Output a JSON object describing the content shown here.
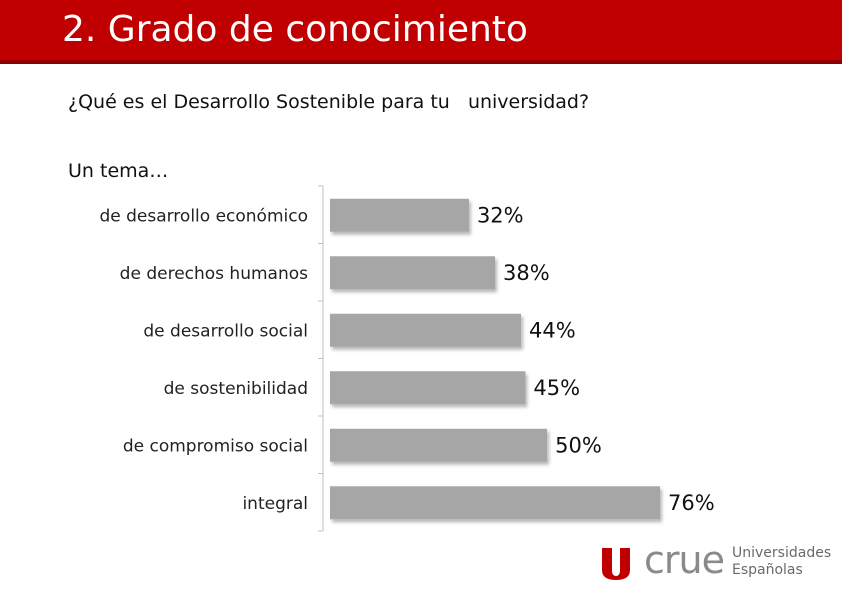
{
  "header": {
    "title": "2. Grado de conocimiento"
  },
  "question": "¿Qué es el Desarrollo Sostenible para tu   universidad?",
  "subtitle": "Un tema…",
  "colors": {
    "title_bg": "#c00000",
    "bar": "#a6a6a6",
    "logo_red": "#c00000"
  },
  "chart_data": {
    "type": "bar",
    "orientation": "horizontal",
    "categories": [
      "de desarrollo económico",
      "de derechos humanos",
      "de desarrollo social",
      "de sostenibilidad",
      "de compromiso social",
      "integral"
    ],
    "values": [
      32,
      38,
      44,
      45,
      50,
      76
    ],
    "value_labels": [
      "32%",
      "38%",
      "44%",
      "45%",
      "50%",
      "76%"
    ],
    "unit": "%",
    "xlim": [
      0,
      76
    ],
    "legend": "none",
    "grid": false
  },
  "logo": {
    "icon": "crue-logo-icon",
    "name": "crue",
    "line1": "Universidades",
    "line2": "Españolas"
  }
}
